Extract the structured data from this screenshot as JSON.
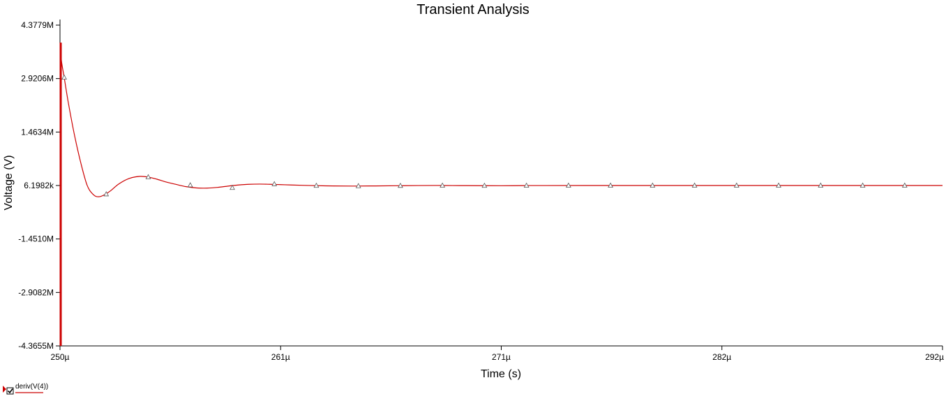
{
  "chart_data": {
    "type": "line",
    "title": "Transient Analysis",
    "xlabel": "Time (s)",
    "ylabel": "Voltage (V)",
    "xlim": [
      250.0,
      292.0
    ],
    "ylim": [
      -4365500,
      4377900
    ],
    "x_ticks": [
      {
        "value": 250.0,
        "label": "250µ"
      },
      {
        "value": 260.5,
        "label": "261µ"
      },
      {
        "value": 271.0,
        "label": "271µ"
      },
      {
        "value": 281.5,
        "label": "282µ"
      },
      {
        "value": 292.0,
        "label": "292µ"
      }
    ],
    "y_ticks": [
      {
        "value": 4377900,
        "label": "4.3779M"
      },
      {
        "value": 2920600,
        "label": "2.9206M"
      },
      {
        "value": 1463400,
        "label": "1.4634M"
      },
      {
        "value": 6198.2,
        "label": "6.1982k"
      },
      {
        "value": -1451000,
        "label": "-1.4510M"
      },
      {
        "value": -2908200,
        "label": "-2.9082M"
      },
      {
        "value": -4365500,
        "label": "-4.3655M"
      }
    ],
    "grid": false,
    "legend_position": "bottom-left",
    "series": [
      {
        "name": "deriv(V(4))",
        "color": "#cc0000",
        "x": [
          250.0,
          250.07,
          250.2,
          250.4,
          250.7,
          251.0,
          251.3,
          251.6,
          251.85,
          252.1,
          252.4,
          252.8,
          253.3,
          253.8,
          254.2,
          254.6,
          255.0,
          255.5,
          256.0,
          256.5,
          257.0,
          257.5,
          258.0,
          258.5,
          259.0,
          259.5,
          260.0,
          260.5,
          261.0,
          261.5,
          262.0,
          263.0,
          264.0,
          265.0,
          266.0,
          267.0,
          268.0,
          269.0,
          270.0,
          271.0,
          272.0,
          273.0,
          275.0,
          278.0,
          281.0,
          284.0,
          287.0,
          290.0,
          292.0
        ],
        "y": [
          3900000,
          3400000,
          2950000,
          2250000,
          1350000,
          600000,
          0,
          -250000,
          -300000,
          -250000,
          -140000,
          50000,
          200000,
          255000,
          235000,
          180000,
          110000,
          40000,
          -25000,
          -60000,
          -65000,
          -45000,
          -10000,
          20000,
          40000,
          45000,
          40000,
          30000,
          20000,
          12000,
          5000,
          -6000,
          -9000,
          -5000,
          0,
          5000,
          7000,
          4000,
          2000,
          0,
          4000,
          5000,
          6000,
          6198,
          6198,
          6198,
          6198,
          6198,
          6198
        ],
        "markers_x": [
          250.2,
          252.2,
          254.2,
          256.2,
          258.2,
          260.2,
          262.2,
          264.2,
          266.2,
          268.2,
          270.2,
          272.2,
          274.2,
          276.2,
          278.2,
          280.2,
          282.2,
          284.2,
          286.2,
          288.2,
          290.2
        ],
        "markers_y": [
          2950000,
          -230000,
          235000,
          15000,
          -55000,
          45000,
          2000,
          -8000,
          0,
          6000,
          2000,
          4000,
          5500,
          6198,
          6198,
          6198,
          6198,
          6198,
          6198,
          6198,
          6198
        ]
      }
    ]
  }
}
